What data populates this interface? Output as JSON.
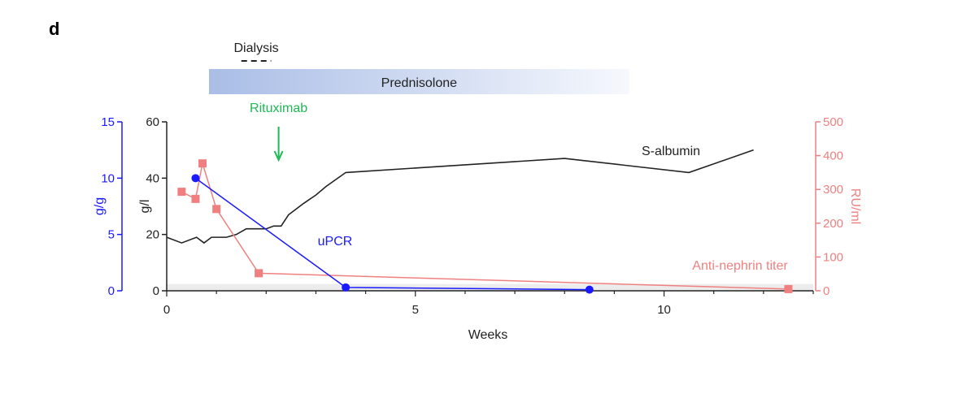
{
  "chart_data": {
    "type": "line",
    "panel_label": "d",
    "xlabel": "Weeks",
    "xlim": [
      0,
      13
    ],
    "x_ticks": [
      0,
      5,
      10
    ],
    "axes": {
      "left_outer": {
        "label": "g/g",
        "range": [
          0,
          15
        ],
        "ticks": [
          0,
          5,
          10,
          15
        ],
        "color": "#1a1aff"
      },
      "left_inner": {
        "label": "g/l",
        "range": [
          0,
          60
        ],
        "ticks": [
          0,
          20,
          40,
          60
        ],
        "color": "#222222"
      },
      "right": {
        "label": "RU/ml",
        "range": [
          0,
          500
        ],
        "ticks": [
          0,
          100,
          200,
          300,
          400,
          500
        ],
        "color": "#f08080"
      }
    },
    "reference_band": {
      "axis": "right",
      "range": [
        0,
        20
      ],
      "color": "#ececec"
    },
    "treatments": {
      "dialysis": {
        "label": "Dialysis",
        "x_start": 1.5,
        "x_end": 2.1
      },
      "prednisolone": {
        "label": "Prednisolone",
        "x_start": 0.85,
        "x_end": 9.3
      },
      "rituximab": {
        "label": "Rituximab",
        "x": 2.25,
        "color": "#1db954"
      }
    },
    "series": [
      {
        "name": "S-albumin",
        "axis": "left_inner",
        "color": "#222222",
        "markers": false,
        "x": [
          0,
          0.3,
          0.6,
          0.75,
          0.9,
          1.2,
          1.4,
          1.6,
          1.8,
          2.0,
          2.15,
          2.3,
          2.45,
          2.6,
          2.75,
          3.0,
          3.2,
          3.6,
          8.0,
          10.5,
          11.8
        ],
        "y": [
          19,
          17,
          19,
          17,
          19,
          19,
          20,
          22,
          22,
          22,
          23,
          23,
          27,
          29,
          31,
          34,
          37,
          42,
          47,
          42,
          50
        ]
      },
      {
        "name": "uPCR",
        "axis": "left_outer",
        "color": "#1a1aff",
        "markers": "circle",
        "x": [
          0.58,
          3.6,
          8.5
        ],
        "y": [
          10,
          0.3,
          0.1
        ]
      },
      {
        "name": "Anti-nephrin titer",
        "axis": "right",
        "color": "#f08080",
        "markers": "square",
        "x": [
          0.3,
          0.58,
          0.72,
          1.0,
          1.85,
          12.5
        ],
        "y": [
          293,
          272,
          377,
          242,
          52,
          5
        ]
      }
    ]
  }
}
